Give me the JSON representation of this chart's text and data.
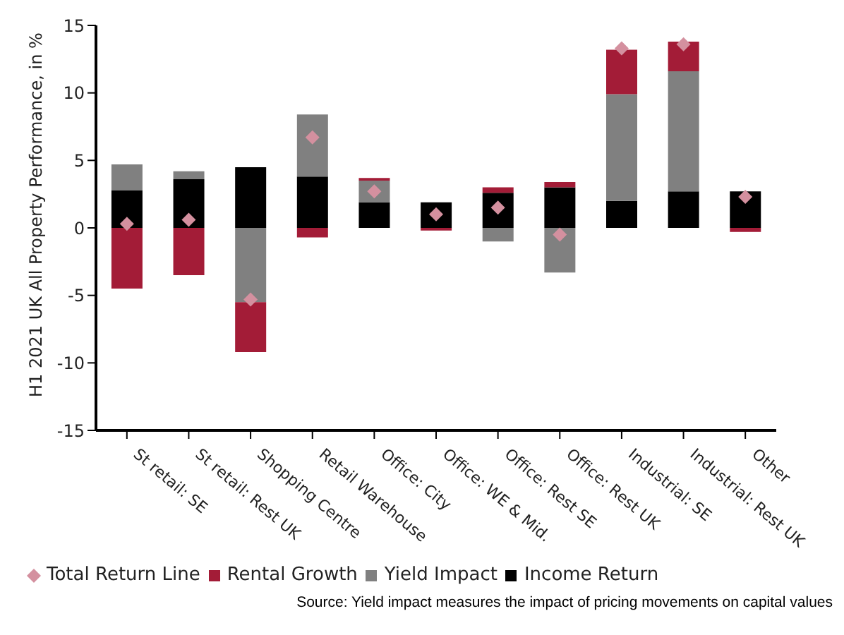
{
  "chart_data": {
    "type": "bar",
    "stacked": true,
    "ylabel": "H1 2021 UK All Property Performance, in %",
    "categories": [
      "St retail: SE",
      "St retail: Rest UK",
      "Shopping Centre",
      "Retail Warehouse",
      "Office: City",
      "Office: WE & Mid.",
      "Office: Rest SE",
      "Office: Rest UK",
      "Industrial: SE",
      "Industrial: Rest UK",
      "Other"
    ],
    "series": [
      {
        "name": "Income Return",
        "color": "#000000",
        "values": [
          2.8,
          3.6,
          4.5,
          3.8,
          1.9,
          1.9,
          2.6,
          3.0,
          2.0,
          2.7,
          2.7
        ]
      },
      {
        "name": "Yield Impact",
        "color": "#808080",
        "values": [
          1.9,
          0.6,
          -5.5,
          4.6,
          1.6,
          0,
          -1.0,
          -3.3,
          7.9,
          8.9,
          0
        ]
      },
      {
        "name": "Rental Growth",
        "color": "#a31c37",
        "values": [
          -4.5,
          -3.5,
          -3.7,
          -0.7,
          0.2,
          -0.2,
          0.4,
          0.4,
          3.3,
          2.2,
          -0.3
        ]
      },
      {
        "name": "Total Return Line",
        "type": "scatter",
        "marker": "diamond",
        "color": "#d4909f",
        "values": [
          0.3,
          0.6,
          -5.3,
          6.7,
          2.7,
          1.0,
          1.5,
          -0.5,
          13.3,
          13.6,
          2.3
        ]
      }
    ],
    "ylim": [
      -15,
      15
    ],
    "yticks": [
      -15,
      -10,
      -5,
      0,
      5,
      10,
      15
    ],
    "grid": false,
    "legend": "bottom",
    "annotations": [
      "Source: Yield impact measures the impact of pricing movements on capital values"
    ]
  }
}
